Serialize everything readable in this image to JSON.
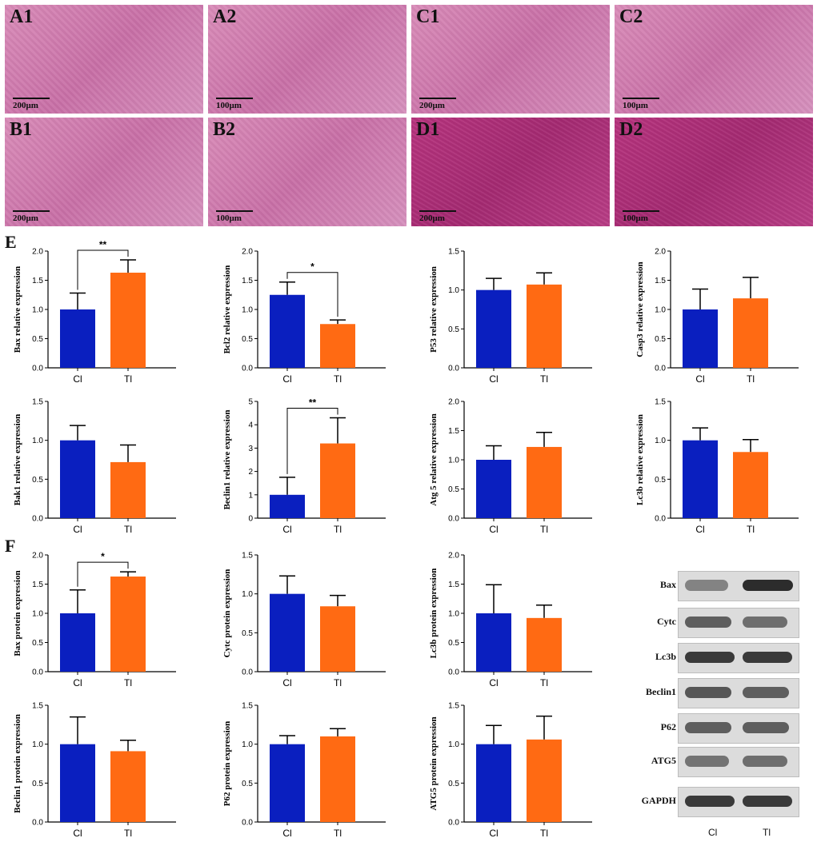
{
  "panels": [
    {
      "label": "A1",
      "scale": "200μm",
      "tone": "pink"
    },
    {
      "label": "A2",
      "scale": "100μm",
      "tone": "pink"
    },
    {
      "label": "C1",
      "scale": "200μm",
      "tone": "pink"
    },
    {
      "label": "C2",
      "scale": "100μm",
      "tone": "pink"
    },
    {
      "label": "B1",
      "scale": "200μm",
      "tone": "pink"
    },
    {
      "label": "B2",
      "scale": "100μm",
      "tone": "pink"
    },
    {
      "label": "D1",
      "scale": "200μm",
      "tone": "purple"
    },
    {
      "label": "D2",
      "scale": "100μm",
      "tone": "purple"
    }
  ],
  "section_labels": {
    "e": "E",
    "f": "F"
  },
  "colors": {
    "cl": "#0a1fbf",
    "tl": "#ff6a13"
  },
  "chart_data": [
    {
      "type": "bar",
      "ylabel": "Bax relative expression",
      "categories": [
        "Cl",
        "Tl"
      ],
      "values": [
        1.0,
        1.63
      ],
      "errors": [
        0.28,
        0.22
      ],
      "ylim": [
        0,
        2.0
      ],
      "yticks": [
        "0.0",
        "0.5",
        "1.0",
        "1.5",
        "2.0"
      ],
      "sig": "**"
    },
    {
      "type": "bar",
      "ylabel": "Bcl2 relative expression",
      "categories": [
        "Cl",
        "Tl"
      ],
      "values": [
        1.25,
        0.75
      ],
      "errors": [
        0.22,
        0.07
      ],
      "ylim": [
        0,
        2.0
      ],
      "yticks": [
        "0.0",
        "0.5",
        "1.0",
        "1.5",
        "2.0"
      ],
      "sig": "*"
    },
    {
      "type": "bar",
      "ylabel": "P53 relative expression",
      "categories": [
        "Cl",
        "Tl"
      ],
      "values": [
        1.0,
        1.07
      ],
      "errors": [
        0.15,
        0.15
      ],
      "ylim": [
        0,
        1.5
      ],
      "yticks": [
        "0.0",
        "0.5",
        "1.0",
        "1.5"
      ],
      "sig": ""
    },
    {
      "type": "bar",
      "ylabel": "Casp3 relative expression",
      "categories": [
        "Cl",
        "Tl"
      ],
      "values": [
        1.0,
        1.19
      ],
      "errors": [
        0.35,
        0.36
      ],
      "ylim": [
        0,
        2.0
      ],
      "yticks": [
        "0.0",
        "0.5",
        "1.0",
        "1.5",
        "2.0"
      ],
      "sig": ""
    },
    {
      "type": "bar",
      "ylabel": "Bak1 relative expression",
      "categories": [
        "Cl",
        "Tl"
      ],
      "values": [
        1.0,
        0.72
      ],
      "errors": [
        0.19,
        0.22
      ],
      "ylim": [
        0,
        1.5
      ],
      "yticks": [
        "0.0",
        "0.5",
        "1.0",
        "1.5"
      ],
      "sig": ""
    },
    {
      "type": "bar",
      "ylabel": "Beclin1 relative expression",
      "categories": [
        "Cl",
        "Tl"
      ],
      "values": [
        1.0,
        3.2
      ],
      "errors": [
        0.75,
        1.1
      ],
      "ylim": [
        0,
        5
      ],
      "yticks": [
        "0",
        "1",
        "2",
        "3",
        "4",
        "5"
      ],
      "sig": "**"
    },
    {
      "type": "bar",
      "ylabel": "Atg 5 relative expression",
      "categories": [
        "Cl",
        "Tl"
      ],
      "values": [
        1.0,
        1.22
      ],
      "errors": [
        0.24,
        0.25
      ],
      "ylim": [
        0,
        2.0
      ],
      "yticks": [
        "0.0",
        "0.5",
        "1.0",
        "1.5",
        "2.0"
      ],
      "sig": ""
    },
    {
      "type": "bar",
      "ylabel": "Lc3b relative expression",
      "categories": [
        "Cl",
        "Tl"
      ],
      "values": [
        1.0,
        0.85
      ],
      "errors": [
        0.16,
        0.16
      ],
      "ylim": [
        0,
        1.5
      ],
      "yticks": [
        "0.0",
        "0.5",
        "1.0",
        "1.5"
      ],
      "sig": ""
    },
    {
      "type": "bar",
      "ylabel": "Bax protein expression",
      "categories": [
        "Cl",
        "Tl"
      ],
      "values": [
        1.0,
        1.63
      ],
      "errors": [
        0.4,
        0.08
      ],
      "ylim": [
        0,
        2.0
      ],
      "yticks": [
        "0.0",
        "0.5",
        "1.0",
        "1.5",
        "2.0"
      ],
      "sig": "*"
    },
    {
      "type": "bar",
      "ylabel": "Cytc protein expression",
      "categories": [
        "Cl",
        "Tl"
      ],
      "values": [
        1.0,
        0.84
      ],
      "errors": [
        0.23,
        0.14
      ],
      "ylim": [
        0,
        1.5
      ],
      "yticks": [
        "0.0",
        "0.5",
        "1.0",
        "1.5"
      ],
      "sig": ""
    },
    {
      "type": "bar",
      "ylabel": "Lc3b protein expression",
      "categories": [
        "Cl",
        "Tl"
      ],
      "values": [
        1.0,
        0.92
      ],
      "errors": [
        0.49,
        0.22
      ],
      "ylim": [
        0,
        2.0
      ],
      "yticks": [
        "0.0",
        "0.5",
        "1.0",
        "1.5",
        "2.0"
      ],
      "sig": ""
    },
    {
      "type": "bar",
      "ylabel": "Beclin1 protein expression",
      "categories": [
        "Cl",
        "Tl"
      ],
      "values": [
        1.0,
        0.91
      ],
      "errors": [
        0.35,
        0.14
      ],
      "ylim": [
        0,
        1.5
      ],
      "yticks": [
        "0.0",
        "0.5",
        "1.0",
        "1.5"
      ],
      "sig": ""
    },
    {
      "type": "bar",
      "ylabel": "P62 protein expression",
      "categories": [
        "Cl",
        "Tl"
      ],
      "values": [
        1.0,
        1.1
      ],
      "errors": [
        0.11,
        0.1
      ],
      "ylim": [
        0,
        1.5
      ],
      "yticks": [
        "0.0",
        "0.5",
        "1.0",
        "1.5"
      ],
      "sig": ""
    },
    {
      "type": "bar",
      "ylabel": "ATG5 protein expression",
      "categories": [
        "Cl",
        "Tl"
      ],
      "values": [
        1.0,
        1.06
      ],
      "errors": [
        0.24,
        0.3
      ],
      "ylim": [
        0,
        1.5
      ],
      "yticks": [
        "0.0",
        "0.5",
        "1.0",
        "1.5"
      ],
      "sig": ""
    }
  ],
  "blot": {
    "rows": [
      {
        "label": "Bax",
        "cl": 0.35,
        "tl": 0.95
      },
      {
        "label": "Cytc",
        "cl": 0.6,
        "tl": 0.5
      },
      {
        "label": "Lc3b",
        "cl": 0.85,
        "tl": 0.85
      },
      {
        "label": "Beclin1",
        "cl": 0.65,
        "tl": 0.6
      },
      {
        "label": "P62",
        "cl": 0.6,
        "tl": 0.6
      },
      {
        "label": "ATG5",
        "cl": 0.45,
        "tl": 0.5
      },
      {
        "label": "GAPDH",
        "cl": 0.85,
        "tl": 0.85
      }
    ],
    "x_labels": [
      "Cl",
      "Tl"
    ]
  }
}
